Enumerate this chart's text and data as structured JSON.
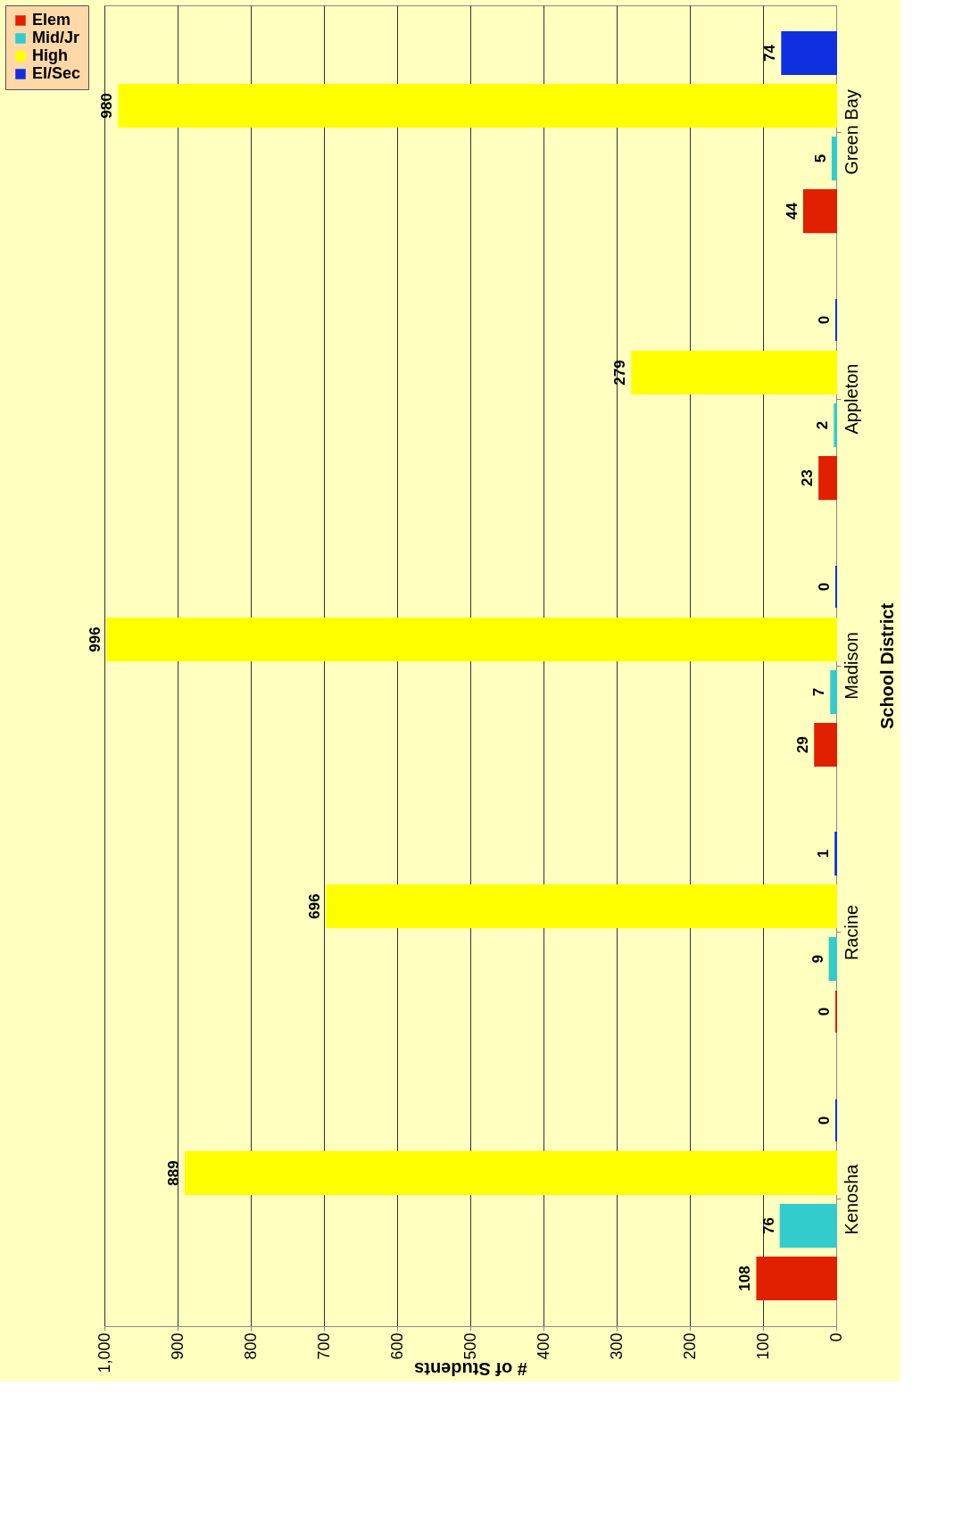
{
  "chart_data": {
    "type": "bar",
    "orientation": "horizontal",
    "xlabel": "# of Students",
    "ylabel": "School District",
    "categories": [
      "Green Bay",
      "Appleton",
      "Madison",
      "Racine",
      "Kenosha"
    ],
    "series": [
      {
        "name": "Elem",
        "color": "#e02000",
        "values": [
          44,
          23,
          29,
          0,
          108
        ]
      },
      {
        "name": "Mid/Jr",
        "color": "#33cccc",
        "values": [
          5,
          2,
          7,
          9,
          76
        ]
      },
      {
        "name": "High",
        "color": "#ffff00",
        "values": [
          980,
          279,
          996,
          696,
          889
        ]
      },
      {
        "name": "El/Sec",
        "color": "#1030e0",
        "values": [
          74,
          0,
          0,
          1,
          0
        ]
      }
    ],
    "xlim": [
      1000,
      0
    ],
    "xticks": [
      0,
      100,
      200,
      300,
      400,
      500,
      600,
      700,
      800,
      900,
      {
        "value": 1000,
        "label": "1,000"
      }
    ],
    "grid": "x",
    "legend": "left",
    "data_labels": true
  }
}
